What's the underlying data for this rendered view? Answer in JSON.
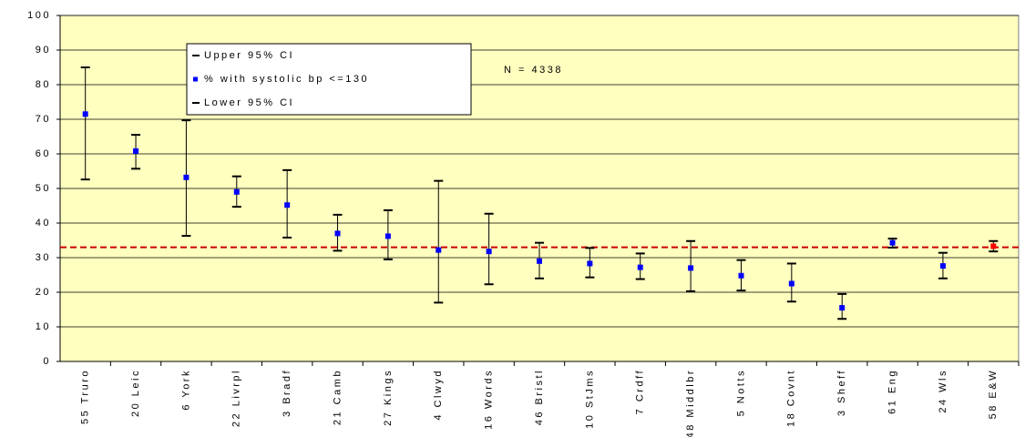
{
  "chart_data": {
    "type": "errorbar",
    "categories": [
      "55 Truro",
      "20 Leic",
      "6 York",
      "22 Livrpl",
      "3 Bradf",
      "21 Camb",
      "27 Kings",
      "4 Clwyd",
      "16 Words",
      "46 Bristl",
      "10 StJms",
      "7 Crdff",
      "48 Middlbr",
      "5 Notts",
      "18 Covnt",
      "3 Sheff",
      "61 Eng",
      "24 Wls",
      "58 E&W"
    ],
    "series": [
      {
        "name": "Upper 95% CI",
        "color": "#000000",
        "values": [
          85,
          65.5,
          69.7,
          53.5,
          55.3,
          42.4,
          43.7,
          52.2,
          42.7,
          34.3,
          32.8,
          31.2,
          34.8,
          29.3,
          28.3,
          19.5,
          35.5,
          31.4,
          34.8
        ]
      },
      {
        "name": "% with systolic bp <=130",
        "color": "#0000ff",
        "values": [
          71.5,
          60.8,
          53.2,
          49,
          45.2,
          37,
          36.2,
          32.2,
          31.8,
          29,
          28.3,
          27.2,
          27,
          24.8,
          22.5,
          15.5,
          34.3,
          27.6,
          33.3
        ],
        "point_colors": [
          "#0000ff",
          "#0000ff",
          "#0000ff",
          "#0000ff",
          "#0000ff",
          "#0000ff",
          "#0000ff",
          "#0000ff",
          "#0000ff",
          "#0000ff",
          "#0000ff",
          "#0000ff",
          "#0000ff",
          "#0000ff",
          "#0000ff",
          "#0000ff",
          "#0000ff",
          "#0000ff",
          "#ff0000"
        ]
      },
      {
        "name": "Lower 95% CI",
        "color": "#000000",
        "values": [
          52.6,
          55.7,
          36.3,
          44.7,
          35.8,
          32,
          29.5,
          17,
          22.3,
          24,
          24.3,
          23.8,
          20.3,
          20.5,
          17.3,
          12.3,
          32.9,
          24,
          31.8
        ]
      }
    ],
    "reference_line": {
      "value": 33,
      "color": "#cc0000"
    },
    "annotation": "N = 4338",
    "ylim": [
      0,
      100
    ],
    "yticks": [
      0,
      10,
      20,
      30,
      40,
      50,
      60,
      70,
      80,
      90,
      100
    ],
    "grid": true,
    "plot_background": "#ffffc0",
    "legend_position": "top-left"
  }
}
